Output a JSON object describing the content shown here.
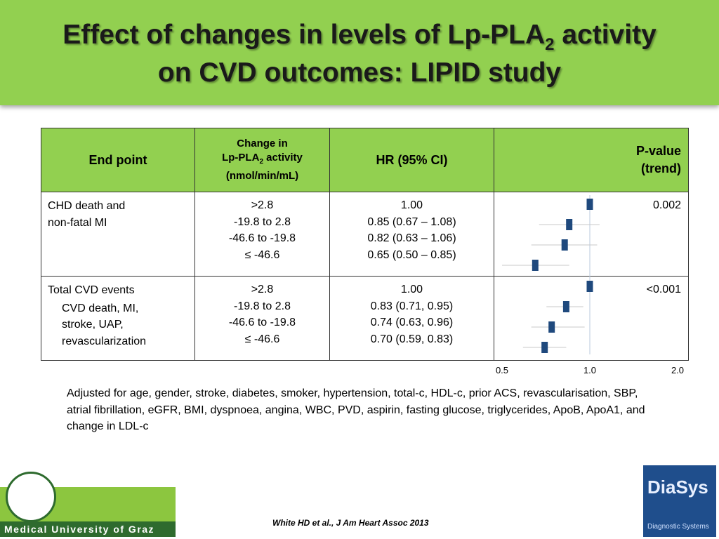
{
  "header": {
    "title_part1": "Effect of changes in levels of Lp-PLA",
    "title_sub": "2",
    "title_part2": " activity",
    "title_line2": "on CVD outcomes: LIPID study"
  },
  "table": {
    "headers": {
      "endpoint": "End point",
      "change_line1": "Change in",
      "change_part1": "Lp-PLA",
      "change_sub": "2",
      "change_part2": " activity",
      "change_line3": "(nmol/min/mL)",
      "hr": "HR (95% CI)",
      "pvalue_line1": "P-value",
      "pvalue_line2": "(trend)"
    },
    "groups": [
      {
        "endpoint": [
          "CHD death and",
          "non-fatal MI"
        ],
        "changes": [
          ">2.8",
          "-19.8 to 2.8",
          "-46.6 to -19.8",
          "≤ -46.6"
        ],
        "hrs": [
          "1.00",
          "0.85 (0.67 – 1.08)",
          "0.82 (0.63 – 1.06)",
          "0.65 (0.50 – 0.85)"
        ],
        "pvalue": "0.002"
      },
      {
        "endpoint": [
          "Total CVD events"
        ],
        "endpoint_sub": [
          "CVD death, MI,",
          "stroke, UAP,",
          "revascularization"
        ],
        "changes": [
          ">2.8",
          "-19.8 to 2.8",
          "-46.6 to -19.8",
          "≤ -46.6"
        ],
        "hrs": [
          "1.00",
          "0.83 (0.71, 0.95)",
          "0.74 (0.63, 0.96)",
          "0.70 (0.59, 0.83)"
        ],
        "pvalue": "<0.001"
      }
    ]
  },
  "forest": {
    "log": true,
    "xlim": [
      0.5,
      2
    ],
    "xticks": [
      0.5,
      {
        "value": 1,
        "label": "1.0"
      },
      {
        "value": 2,
        "label": "2.0"
      }
    ],
    "color": "#1f497d",
    "groups": [
      {
        "estimates": [
          1,
          0.85,
          0.82,
          0.65
        ],
        "lower": [
          null,
          0.67,
          0.63,
          0.5
        ],
        "upper": [
          null,
          1.08,
          1.06,
          0.85
        ]
      },
      {
        "estimates": [
          1,
          0.83,
          0.74,
          0.7
        ],
        "lower": [
          null,
          0.71,
          0.63,
          0.59
        ],
        "upper": [
          null,
          0.95,
          0.96,
          0.83
        ]
      }
    ]
  },
  "footnote": "Adjusted for age, gender, stroke, diabetes, smoker, hypertension, total-c, HDL-c, prior ACS, revascularisation, SBP, atrial fibrillation, eGFR, BMI, dyspnoea, angina, WBC, PVD, aspirin, fasting glucose, triglycerides, ApoB, ApoA1, and change in LDL-c",
  "citation": "White HD et al., J Am Heart Assoc 2013",
  "logos": {
    "left": "Medical University of Graz",
    "right_name": "DiaSys",
    "right_sub": "Diagnostic Systems"
  }
}
